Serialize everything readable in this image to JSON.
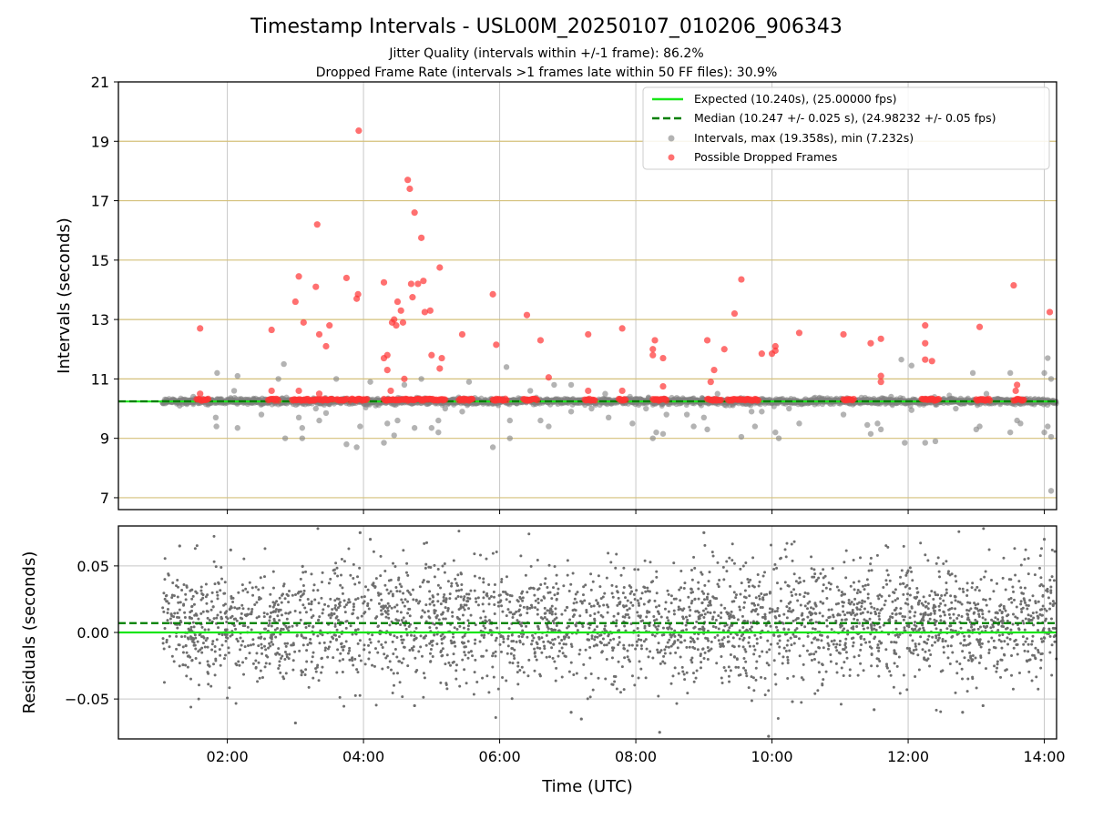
{
  "chart_data": {
    "type": "scatter",
    "title": "Timestamp Intervals - USL00M_20250107_010206_906343",
    "subtitle_1": "Jitter Quality (intervals within +/-1 frame): 86.2%",
    "subtitle_2": "Dropped Frame Rate (intervals >1 frames late within 50 FF files): 30.9%",
    "xlabel": "Time (UTC)",
    "x_ticks": [
      "02:00",
      "04:00",
      "06:00",
      "08:00",
      "10:00",
      "12:00",
      "14:00"
    ],
    "x_tick_hours": [
      2,
      4,
      6,
      8,
      10,
      12,
      14
    ],
    "xlim_hours": [
      0.4,
      14.18
    ],
    "grid": true,
    "legend_position": "top-right",
    "top_panel": {
      "ylabel": "Intervals (seconds)",
      "ylim": [
        6.6,
        21
      ],
      "y_ticks": [
        "7",
        "9",
        "11",
        "13",
        "15",
        "17",
        "19",
        "21"
      ],
      "y_tick_values": [
        7,
        9,
        11,
        13,
        15,
        17,
        19,
        21
      ],
      "expected_line": {
        "value": 10.24,
        "label": "Expected (10.240s), (25.00000 fps)",
        "color": "#19e619"
      },
      "median_line": {
        "value": 10.247,
        "label": "Median (10.247 +/- 0.025 s), (24.98232 +/- 0.05 fps)",
        "color": "#007f00"
      },
      "intervals_label": "Intervals, max (19.358s), min (7.232s)",
      "intervals_color": "#808080",
      "dropped_label": "Possible Dropped Frames",
      "dropped_color": "#ff3333",
      "intervals_outliers": [
        [
          1.05,
          10.2
        ],
        [
          1.3,
          10.1
        ],
        [
          1.5,
          10.4
        ],
        [
          1.72,
          10.3
        ],
        [
          1.85,
          11.2
        ],
        [
          1.83,
          9.7
        ],
        [
          1.84,
          9.4
        ],
        [
          2.1,
          10.6
        ],
        [
          2.15,
          11.1
        ],
        [
          2.15,
          9.35
        ],
        [
          2.45,
          10.3
        ],
        [
          2.5,
          9.8
        ],
        [
          2.75,
          11.0
        ],
        [
          2.83,
          11.5
        ],
        [
          2.85,
          9.0
        ],
        [
          3.05,
          9.7
        ],
        [
          3.1,
          9.35
        ],
        [
          3.1,
          9.0
        ],
        [
          3.3,
          10.0
        ],
        [
          3.35,
          9.6
        ],
        [
          3.45,
          9.85
        ],
        [
          3.6,
          11.0
        ],
        [
          3.75,
          8.8
        ],
        [
          3.9,
          8.7
        ],
        [
          3.95,
          9.4
        ],
        [
          4.1,
          10.9
        ],
        [
          4.3,
          8.85
        ],
        [
          4.35,
          9.5
        ],
        [
          4.45,
          9.1
        ],
        [
          4.5,
          9.6
        ],
        [
          4.6,
          10.8
        ],
        [
          4.75,
          9.35
        ],
        [
          4.85,
          11.0
        ],
        [
          5.0,
          9.35
        ],
        [
          5.1,
          9.6
        ],
        [
          5.1,
          9.2
        ],
        [
          5.2,
          10.0
        ],
        [
          5.45,
          9.9
        ],
        [
          5.55,
          10.9
        ],
        [
          5.9,
          8.7
        ],
        [
          6.1,
          11.4
        ],
        [
          6.15,
          9.0
        ],
        [
          6.15,
          9.6
        ],
        [
          6.45,
          10.6
        ],
        [
          6.6,
          9.6
        ],
        [
          6.72,
          9.4
        ],
        [
          6.8,
          10.8
        ],
        [
          7.05,
          9.9
        ],
        [
          7.05,
          10.8
        ],
        [
          7.35,
          10.0
        ],
        [
          7.55,
          10.5
        ],
        [
          7.6,
          9.7
        ],
        [
          7.95,
          9.5
        ],
        [
          8.15,
          10.0
        ],
        [
          8.25,
          9.0
        ],
        [
          8.3,
          9.2
        ],
        [
          8.4,
          9.15
        ],
        [
          8.45,
          9.8
        ],
        [
          8.55,
          10.3
        ],
        [
          8.75,
          9.8
        ],
        [
          8.85,
          9.4
        ],
        [
          9.0,
          9.7
        ],
        [
          9.05,
          9.3
        ],
        [
          9.2,
          10.5
        ],
        [
          9.45,
          10.2
        ],
        [
          9.55,
          9.05
        ],
        [
          9.7,
          9.9
        ],
        [
          9.75,
          9.4
        ],
        [
          9.85,
          9.9
        ],
        [
          10.05,
          9.2
        ],
        [
          10.1,
          9.0
        ],
        [
          10.25,
          10.0
        ],
        [
          10.4,
          9.5
        ],
        [
          10.65,
          10.2
        ],
        [
          11.05,
          9.8
        ],
        [
          11.4,
          9.45
        ],
        [
          11.45,
          9.15
        ],
        [
          11.55,
          9.5
        ],
        [
          11.6,
          9.3
        ],
        [
          11.75,
          10.4
        ],
        [
          11.95,
          8.85
        ],
        [
          11.9,
          11.65
        ],
        [
          12.05,
          9.95
        ],
        [
          12.05,
          11.45
        ],
        [
          12.25,
          8.85
        ],
        [
          12.4,
          8.9
        ],
        [
          12.4,
          10.3
        ],
        [
          12.7,
          10.0
        ],
        [
          12.95,
          11.2
        ],
        [
          13.0,
          9.3
        ],
        [
          13.05,
          9.4
        ],
        [
          13.15,
          10.5
        ],
        [
          13.5,
          11.2
        ],
        [
          13.5,
          9.2
        ],
        [
          13.6,
          9.6
        ],
        [
          13.65,
          9.5
        ],
        [
          13.85,
          10.3
        ],
        [
          14.0,
          11.2
        ],
        [
          14.0,
          9.2
        ],
        [
          14.05,
          9.4
        ],
        [
          14.1,
          11.0
        ],
        [
          14.05,
          11.7
        ],
        [
          14.1,
          9.05
        ],
        [
          14.1,
          7.232
        ]
      ],
      "dropped_frames": [
        [
          1.6,
          12.7
        ],
        [
          1.6,
          10.5
        ],
        [
          2.65,
          12.65
        ],
        [
          2.65,
          10.6
        ],
        [
          3.0,
          13.6
        ],
        [
          3.05,
          14.45
        ],
        [
          3.05,
          10.6
        ],
        [
          3.12,
          12.9
        ],
        [
          3.3,
          14.1
        ],
        [
          3.32,
          16.2
        ],
        [
          3.35,
          12.5
        ],
        [
          3.35,
          10.5
        ],
        [
          3.45,
          12.1
        ],
        [
          3.5,
          12.8
        ],
        [
          3.75,
          14.4
        ],
        [
          3.9,
          13.7
        ],
        [
          3.92,
          13.85
        ],
        [
          3.93,
          19.358
        ],
        [
          4.3,
          14.25
        ],
        [
          4.3,
          11.7
        ],
        [
          4.35,
          11.8
        ],
        [
          4.35,
          11.3
        ],
        [
          4.4,
          10.6
        ],
        [
          4.42,
          12.9
        ],
        [
          4.45,
          13.0
        ],
        [
          4.48,
          12.8
        ],
        [
          4.5,
          13.6
        ],
        [
          4.55,
          13.3
        ],
        [
          4.58,
          12.9
        ],
        [
          4.6,
          11.0
        ],
        [
          4.65,
          17.7
        ],
        [
          4.68,
          17.4
        ],
        [
          4.7,
          14.2
        ],
        [
          4.72,
          13.75
        ],
        [
          4.75,
          16.6
        ],
        [
          4.8,
          14.2
        ],
        [
          4.85,
          15.75
        ],
        [
          4.88,
          14.3
        ],
        [
          4.9,
          13.25
        ],
        [
          4.98,
          13.3
        ],
        [
          5.0,
          11.8
        ],
        [
          5.12,
          11.35
        ],
        [
          5.12,
          14.75
        ],
        [
          5.15,
          11.7
        ],
        [
          5.45,
          12.5
        ],
        [
          5.9,
          13.85
        ],
        [
          5.95,
          12.15
        ],
        [
          6.4,
          13.15
        ],
        [
          6.6,
          12.3
        ],
        [
          6.72,
          11.05
        ],
        [
          7.3,
          12.5
        ],
        [
          7.3,
          10.6
        ],
        [
          7.8,
          12.7
        ],
        [
          7.8,
          10.6
        ],
        [
          8.25,
          12.0
        ],
        [
          8.25,
          11.8
        ],
        [
          8.28,
          12.3
        ],
        [
          8.4,
          11.7
        ],
        [
          8.4,
          10.75
        ],
        [
          9.05,
          12.3
        ],
        [
          9.1,
          10.9
        ],
        [
          9.15,
          11.3
        ],
        [
          9.3,
          12.0
        ],
        [
          9.45,
          13.2
        ],
        [
          9.55,
          14.35
        ],
        [
          9.85,
          11.85
        ],
        [
          10.0,
          11.85
        ],
        [
          10.05,
          12.1
        ],
        [
          10.05,
          11.95
        ],
        [
          10.4,
          12.55
        ],
        [
          11.05,
          12.5
        ],
        [
          11.45,
          12.2
        ],
        [
          11.6,
          12.35
        ],
        [
          11.6,
          11.1
        ],
        [
          11.6,
          10.9
        ],
        [
          12.25,
          12.8
        ],
        [
          12.25,
          12.2
        ],
        [
          12.25,
          11.65
        ],
        [
          12.35,
          11.6
        ],
        [
          13.05,
          12.75
        ],
        [
          13.55,
          14.15
        ],
        [
          13.58,
          10.6
        ],
        [
          13.6,
          10.8
        ],
        [
          14.08,
          13.25
        ]
      ]
    },
    "bottom_panel": {
      "ylabel": "Residuals (seconds)",
      "ylim": [
        -0.08,
        0.08
      ],
      "y_ticks": [
        "0.05",
        "0.00",
        "−0.05"
      ],
      "y_tick_values": [
        0.05,
        0.0,
        -0.05
      ],
      "expected_residual": 0.0,
      "median_residual": 0.007,
      "residual_spread_sd": 0.022,
      "x_range_hours": [
        1.05,
        14.18
      ],
      "residual_extremes": [
        [
          3.0,
          -0.068
        ],
        [
          3.95,
          0.075
        ],
        [
          4.1,
          0.07
        ],
        [
          4.75,
          -0.055
        ],
        [
          7.05,
          -0.06
        ],
        [
          7.2,
          -0.065
        ],
        [
          8.35,
          -0.075
        ],
        [
          9.0,
          0.075
        ],
        [
          9.95,
          -0.078
        ],
        [
          10.3,
          -0.052
        ],
        [
          13.1,
          -0.055
        ],
        [
          14.0,
          0.07
        ],
        [
          1.3,
          0.065
        ],
        [
          2.05,
          0.062
        ],
        [
          12.8,
          -0.06
        ],
        [
          11.5,
          -0.058
        ]
      ]
    }
  }
}
